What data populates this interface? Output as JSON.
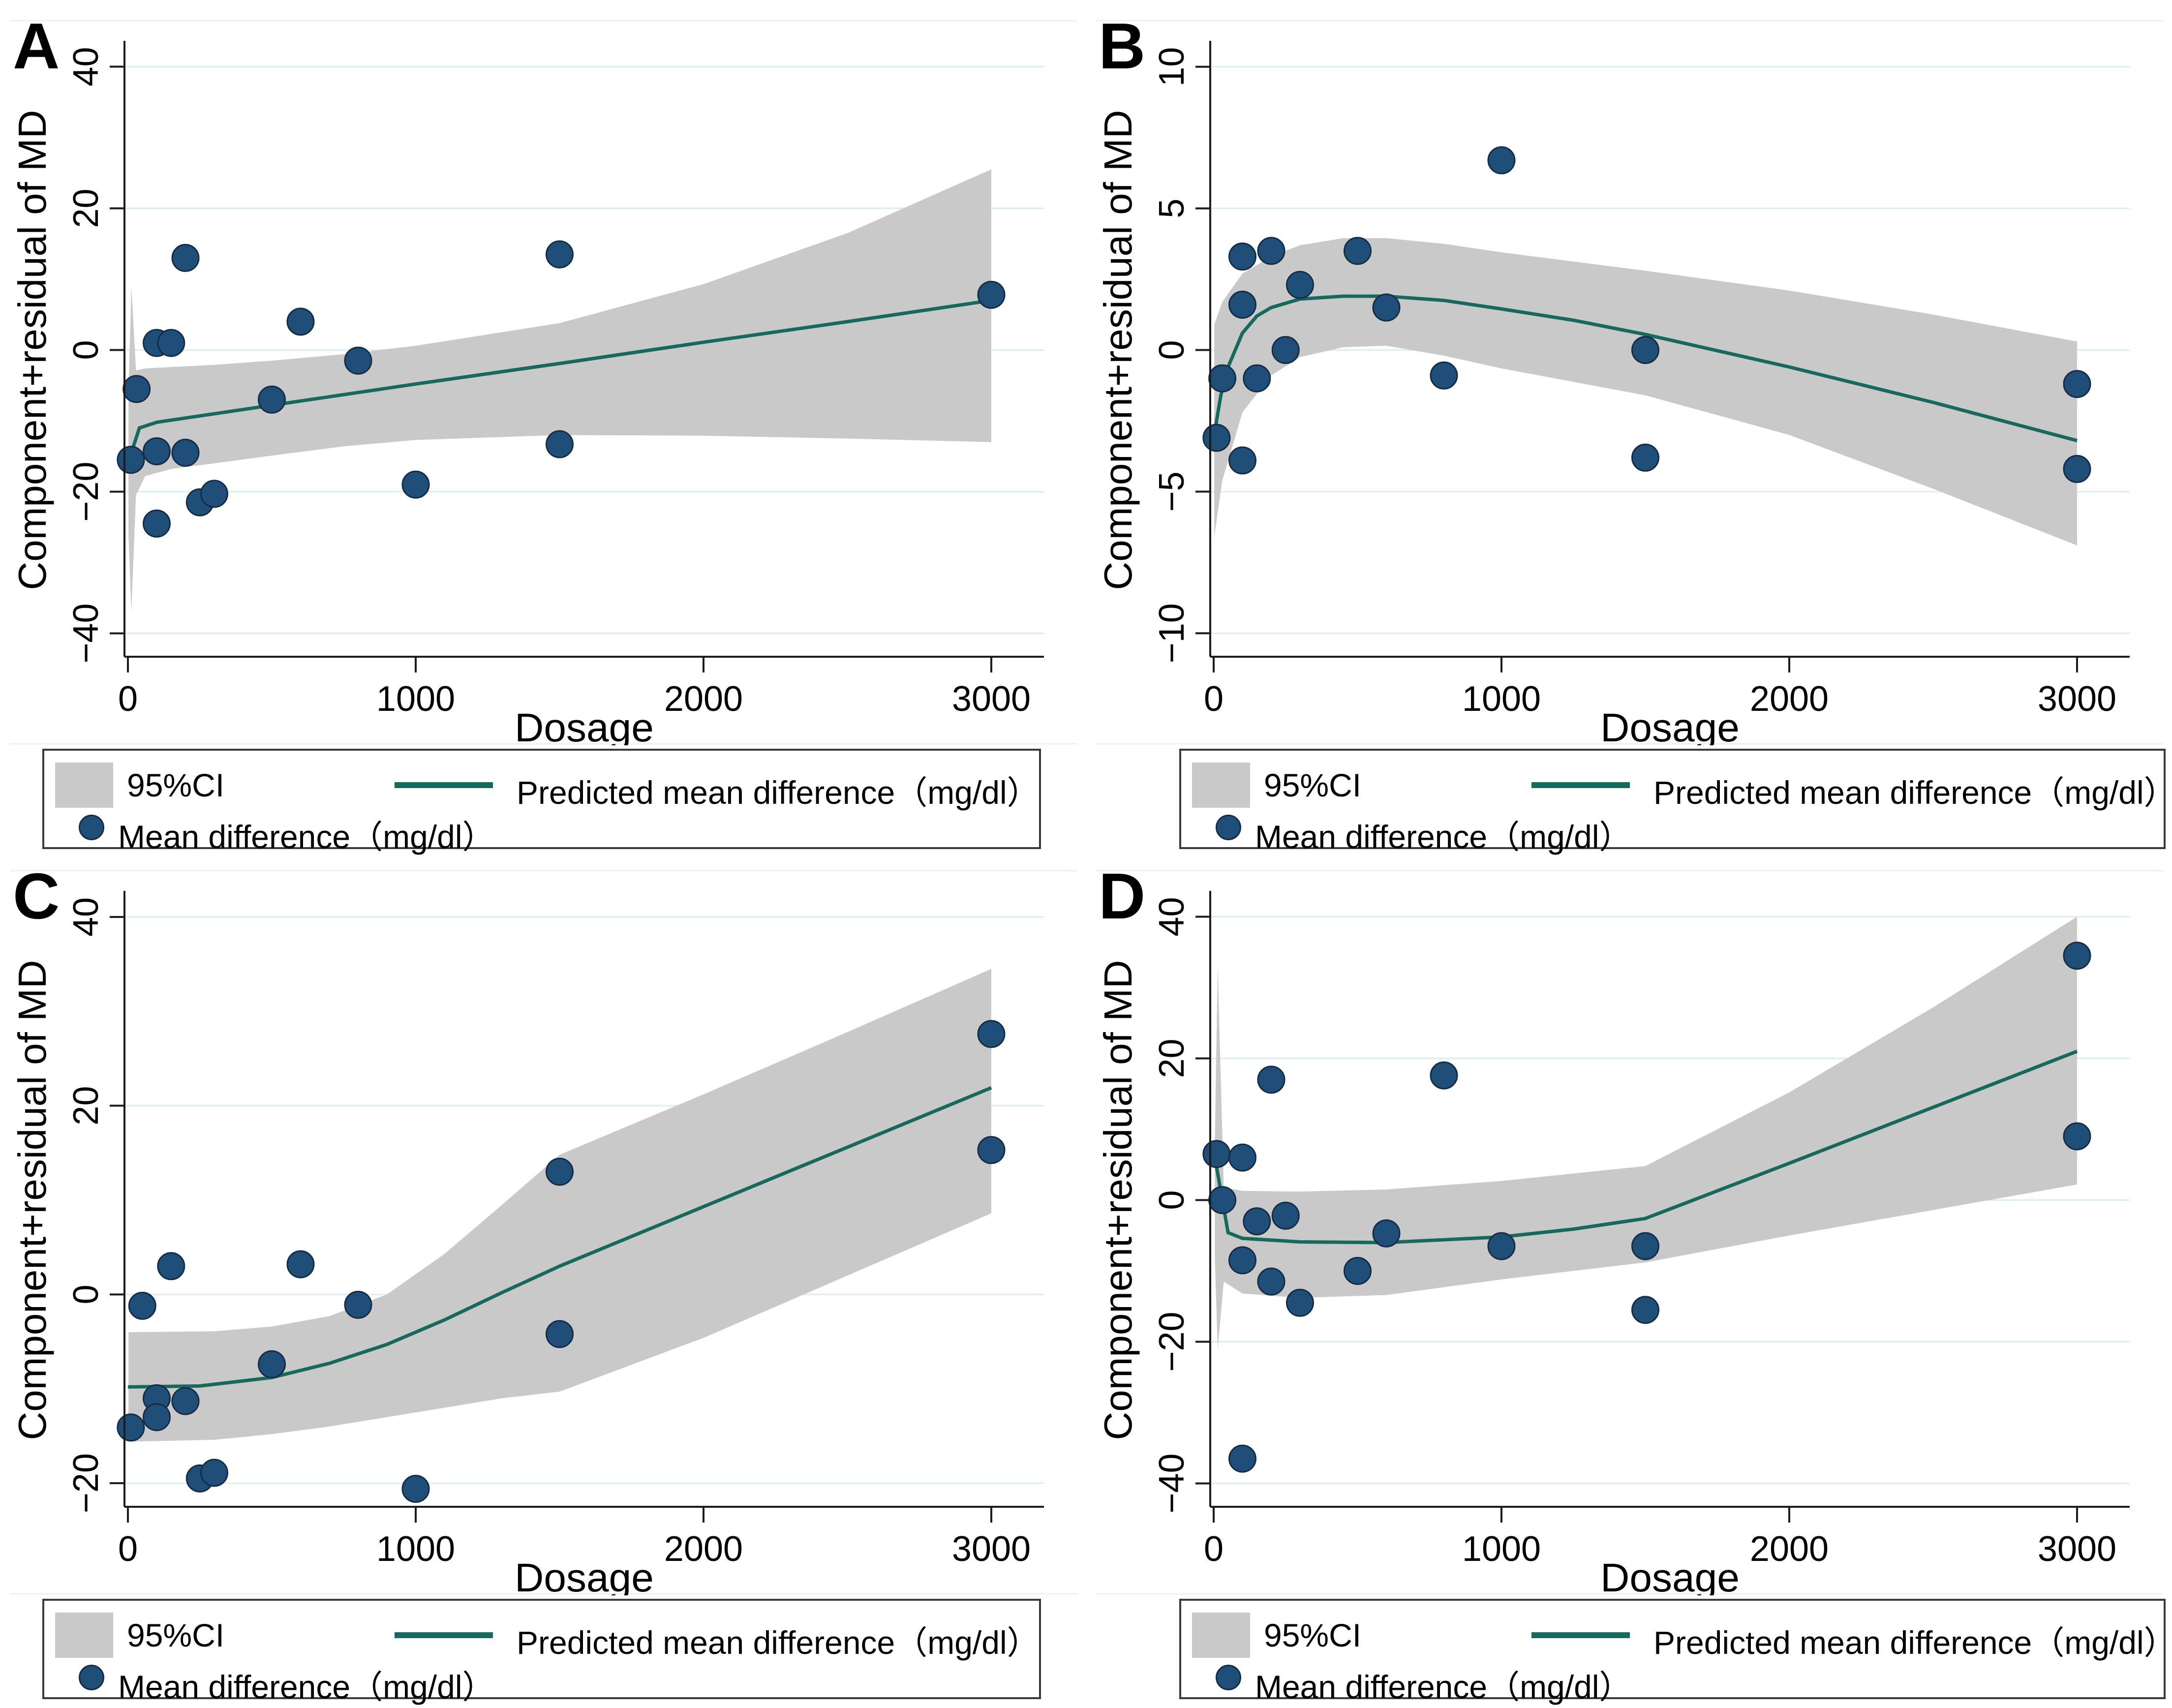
{
  "legend": {
    "ci_label": "95%CI",
    "line_label": "Predicted mean difference（mg/dl）",
    "points_label": "Mean difference（mg/dl）"
  },
  "colors": {
    "point": "#1f4e79",
    "point_border": "#152c44",
    "line": "#17695d",
    "band": "#c9c9c9",
    "grid": "#ddeef0",
    "axis": "#1c1c1c",
    "frame": "#e9f3f5",
    "text": "#000000"
  },
  "chart_data": [
    {
      "type": "scatter",
      "panel_label": "A",
      "xlabel": "Dosage",
      "ylabel": "Component+residual of MD",
      "xticks": [
        0,
        1000,
        2000,
        3000
      ],
      "yticks": [
        -40,
        -20,
        0,
        20,
        40
      ],
      "xlim": [
        -15,
        3180
      ],
      "ylim": [
        -43.3,
        43.3
      ],
      "grid": "horizontal",
      "points": [
        [
          10,
          -15.5
        ],
        [
          30,
          -5.5
        ],
        [
          100,
          1.0
        ],
        [
          150,
          1.0
        ],
        [
          200,
          13.0
        ],
        [
          100,
          -14.3
        ],
        [
          200,
          -14.5
        ],
        [
          100,
          -24.5
        ],
        [
          250,
          -21.5
        ],
        [
          300,
          -20.3
        ],
        [
          500,
          -7.0
        ],
        [
          600,
          4.0
        ],
        [
          800,
          -1.5
        ],
        [
          1000,
          -19.0
        ],
        [
          1500,
          13.5
        ],
        [
          1500,
          -13.3
        ],
        [
          3000,
          7.8
        ]
      ],
      "line": [
        [
          0,
          -16.0
        ],
        [
          40,
          -11.0
        ],
        [
          100,
          -10.2
        ],
        [
          250,
          -9.3
        ],
        [
          500,
          -7.8
        ],
        [
          750,
          -6.3
        ],
        [
          1000,
          -4.8
        ],
        [
          1500,
          -1.9
        ],
        [
          2000,
          1.1
        ],
        [
          2500,
          4.0
        ],
        [
          3000,
          7.0
        ]
      ],
      "band": {
        "x": [
          2,
          12,
          28,
          60,
          150,
          300,
          500,
          750,
          1000,
          1500,
          2000,
          2500,
          3000
        ],
        "top": [
          -6.0,
          9.0,
          -2.9,
          -2.6,
          -2.4,
          -2.1,
          -1.5,
          -0.6,
          0.6,
          3.8,
          9.3,
          16.5,
          25.5
        ],
        "bottom": [
          -26.0,
          -37.0,
          -20.5,
          -17.8,
          -16.8,
          -16.0,
          -14.9,
          -13.6,
          -12.7,
          -12.0,
          -12.1,
          -12.5,
          -13.0
        ]
      }
    },
    {
      "type": "scatter",
      "panel_label": "B",
      "xlabel": "Dosage",
      "ylabel": "Component+residual of MD",
      "xticks": [
        0,
        1000,
        2000,
        3000
      ],
      "yticks": [
        -10,
        -5,
        0,
        5,
        10
      ],
      "xlim": [
        -15,
        3180
      ],
      "ylim": [
        -10.83,
        10.83
      ],
      "grid": "horizontal",
      "points": [
        [
          10,
          -3.1
        ],
        [
          30,
          -1.0
        ],
        [
          100,
          3.3
        ],
        [
          100,
          1.6
        ],
        [
          100,
          -3.9
        ],
        [
          150,
          -1.0
        ],
        [
          200,
          3.5
        ],
        [
          250,
          0.0
        ],
        [
          300,
          2.3
        ],
        [
          500,
          3.5
        ],
        [
          600,
          1.5
        ],
        [
          800,
          -0.9
        ],
        [
          1000,
          6.7
        ],
        [
          1500,
          0.0
        ],
        [
          1500,
          -3.8
        ],
        [
          3000,
          -1.2
        ],
        [
          3000,
          -4.2
        ]
      ],
      "line": [
        [
          0,
          -3.1
        ],
        [
          25,
          -1.6
        ],
        [
          50,
          -0.6
        ],
        [
          100,
          0.6
        ],
        [
          150,
          1.2
        ],
        [
          200,
          1.5
        ],
        [
          300,
          1.8
        ],
        [
          450,
          1.9
        ],
        [
          600,
          1.9
        ],
        [
          800,
          1.75
        ],
        [
          1000,
          1.45
        ],
        [
          1250,
          1.05
        ],
        [
          1500,
          0.55
        ],
        [
          2000,
          -0.6
        ],
        [
          2500,
          -1.85
        ],
        [
          3000,
          -3.2
        ]
      ],
      "band": {
        "x": [
          2,
          30,
          100,
          200,
          300,
          450,
          600,
          800,
          1000,
          1500,
          2000,
          2500,
          3000
        ],
        "top": [
          0.9,
          1.7,
          2.7,
          3.3,
          3.7,
          3.95,
          3.95,
          3.75,
          3.45,
          2.8,
          2.1,
          1.25,
          0.3
        ],
        "bottom": [
          -6.6,
          -4.6,
          -2.2,
          -0.9,
          -0.25,
          0.1,
          0.15,
          -0.2,
          -0.65,
          -1.6,
          -3.0,
          -4.9,
          -6.9
        ]
      }
    },
    {
      "type": "scatter",
      "panel_label": "C",
      "xlabel": "Dosage",
      "ylabel": "Component+residual of MD",
      "xticks": [
        0,
        1000,
        2000,
        3000
      ],
      "yticks": [
        -20,
        0,
        20,
        40
      ],
      "xlim": [
        -15,
        3180
      ],
      "ylim": [
        -22.5,
        42.5
      ],
      "grid": "horizontal",
      "points": [
        [
          10,
          -14.1
        ],
        [
          50,
          -1.2
        ],
        [
          100,
          -11.0
        ],
        [
          100,
          -13.0
        ],
        [
          150,
          3.0
        ],
        [
          200,
          -11.3
        ],
        [
          250,
          -19.5
        ],
        [
          300,
          -18.9
        ],
        [
          500,
          -7.4
        ],
        [
          600,
          3.2
        ],
        [
          800,
          -1.1
        ],
        [
          1000,
          -20.6
        ],
        [
          1500,
          13.0
        ],
        [
          1500,
          -4.2
        ],
        [
          3000,
          27.6
        ],
        [
          3000,
          15.3
        ]
      ],
      "line": [
        [
          0,
          -9.8
        ],
        [
          250,
          -9.7
        ],
        [
          500,
          -8.8
        ],
        [
          700,
          -7.3
        ],
        [
          900,
          -5.3
        ],
        [
          1100,
          -2.7
        ],
        [
          1300,
          0.2
        ],
        [
          1500,
          3.0
        ],
        [
          2000,
          9.3
        ],
        [
          2500,
          15.6
        ],
        [
          3000,
          21.9
        ]
      ],
      "band": {
        "x": [
          2,
          300,
          500,
          700,
          900,
          1100,
          1300,
          1500,
          2000,
          2500,
          3000
        ],
        "top": [
          -4.0,
          -3.9,
          -3.4,
          -2.3,
          0.0,
          4.3,
          9.5,
          14.8,
          21.2,
          27.8,
          34.5
        ],
        "bottom": [
          -15.6,
          -15.4,
          -14.8,
          -14.0,
          -13.0,
          -12.0,
          -11.0,
          -10.3,
          -4.6,
          2.0,
          8.6
        ]
      }
    },
    {
      "type": "scatter",
      "panel_label": "D",
      "xlabel": "Dosage",
      "ylabel": "Component+residual of MD",
      "xticks": [
        0,
        1000,
        2000,
        3000
      ],
      "yticks": [
        -40,
        -20,
        0,
        20,
        40
      ],
      "xlim": [
        -15,
        3180
      ],
      "ylim": [
        -43.3,
        43.3
      ],
      "grid": "horizontal",
      "points": [
        [
          10,
          6.5
        ],
        [
          30,
          0.0
        ],
        [
          100,
          6.0
        ],
        [
          100,
          -8.5
        ],
        [
          100,
          -36.5
        ],
        [
          150,
          -3.0
        ],
        [
          200,
          17.0
        ],
        [
          200,
          -11.5
        ],
        [
          250,
          -2.2
        ],
        [
          300,
          -14.5
        ],
        [
          500,
          -10.0
        ],
        [
          600,
          -4.7
        ],
        [
          800,
          17.6
        ],
        [
          1000,
          -6.5
        ],
        [
          1500,
          -6.5
        ],
        [
          1500,
          -15.5
        ],
        [
          3000,
          34.5
        ],
        [
          3000,
          9.0
        ]
      ],
      "line": [
        [
          0,
          7.0
        ],
        [
          50,
          -4.6
        ],
        [
          100,
          -5.4
        ],
        [
          300,
          -5.9
        ],
        [
          600,
          -6.0
        ],
        [
          1000,
          -5.2
        ],
        [
          1250,
          -4.1
        ],
        [
          1500,
          -2.6
        ],
        [
          2000,
          5.2
        ],
        [
          2500,
          13.1
        ],
        [
          3000,
          21.0
        ]
      ],
      "band": {
        "x": [
          4,
          14,
          35,
          100,
          300,
          600,
          1000,
          1500,
          2000,
          2500,
          3000
        ],
        "top": [
          8.0,
          33.0,
          1.8,
          1.3,
          1.2,
          1.5,
          2.7,
          4.8,
          15.2,
          27.2,
          40.0
        ],
        "bottom": [
          -8.0,
          -21.0,
          -11.5,
          -13.2,
          -13.8,
          -13.4,
          -11.2,
          -8.8,
          -5.0,
          -1.4,
          2.2
        ]
      }
    }
  ]
}
